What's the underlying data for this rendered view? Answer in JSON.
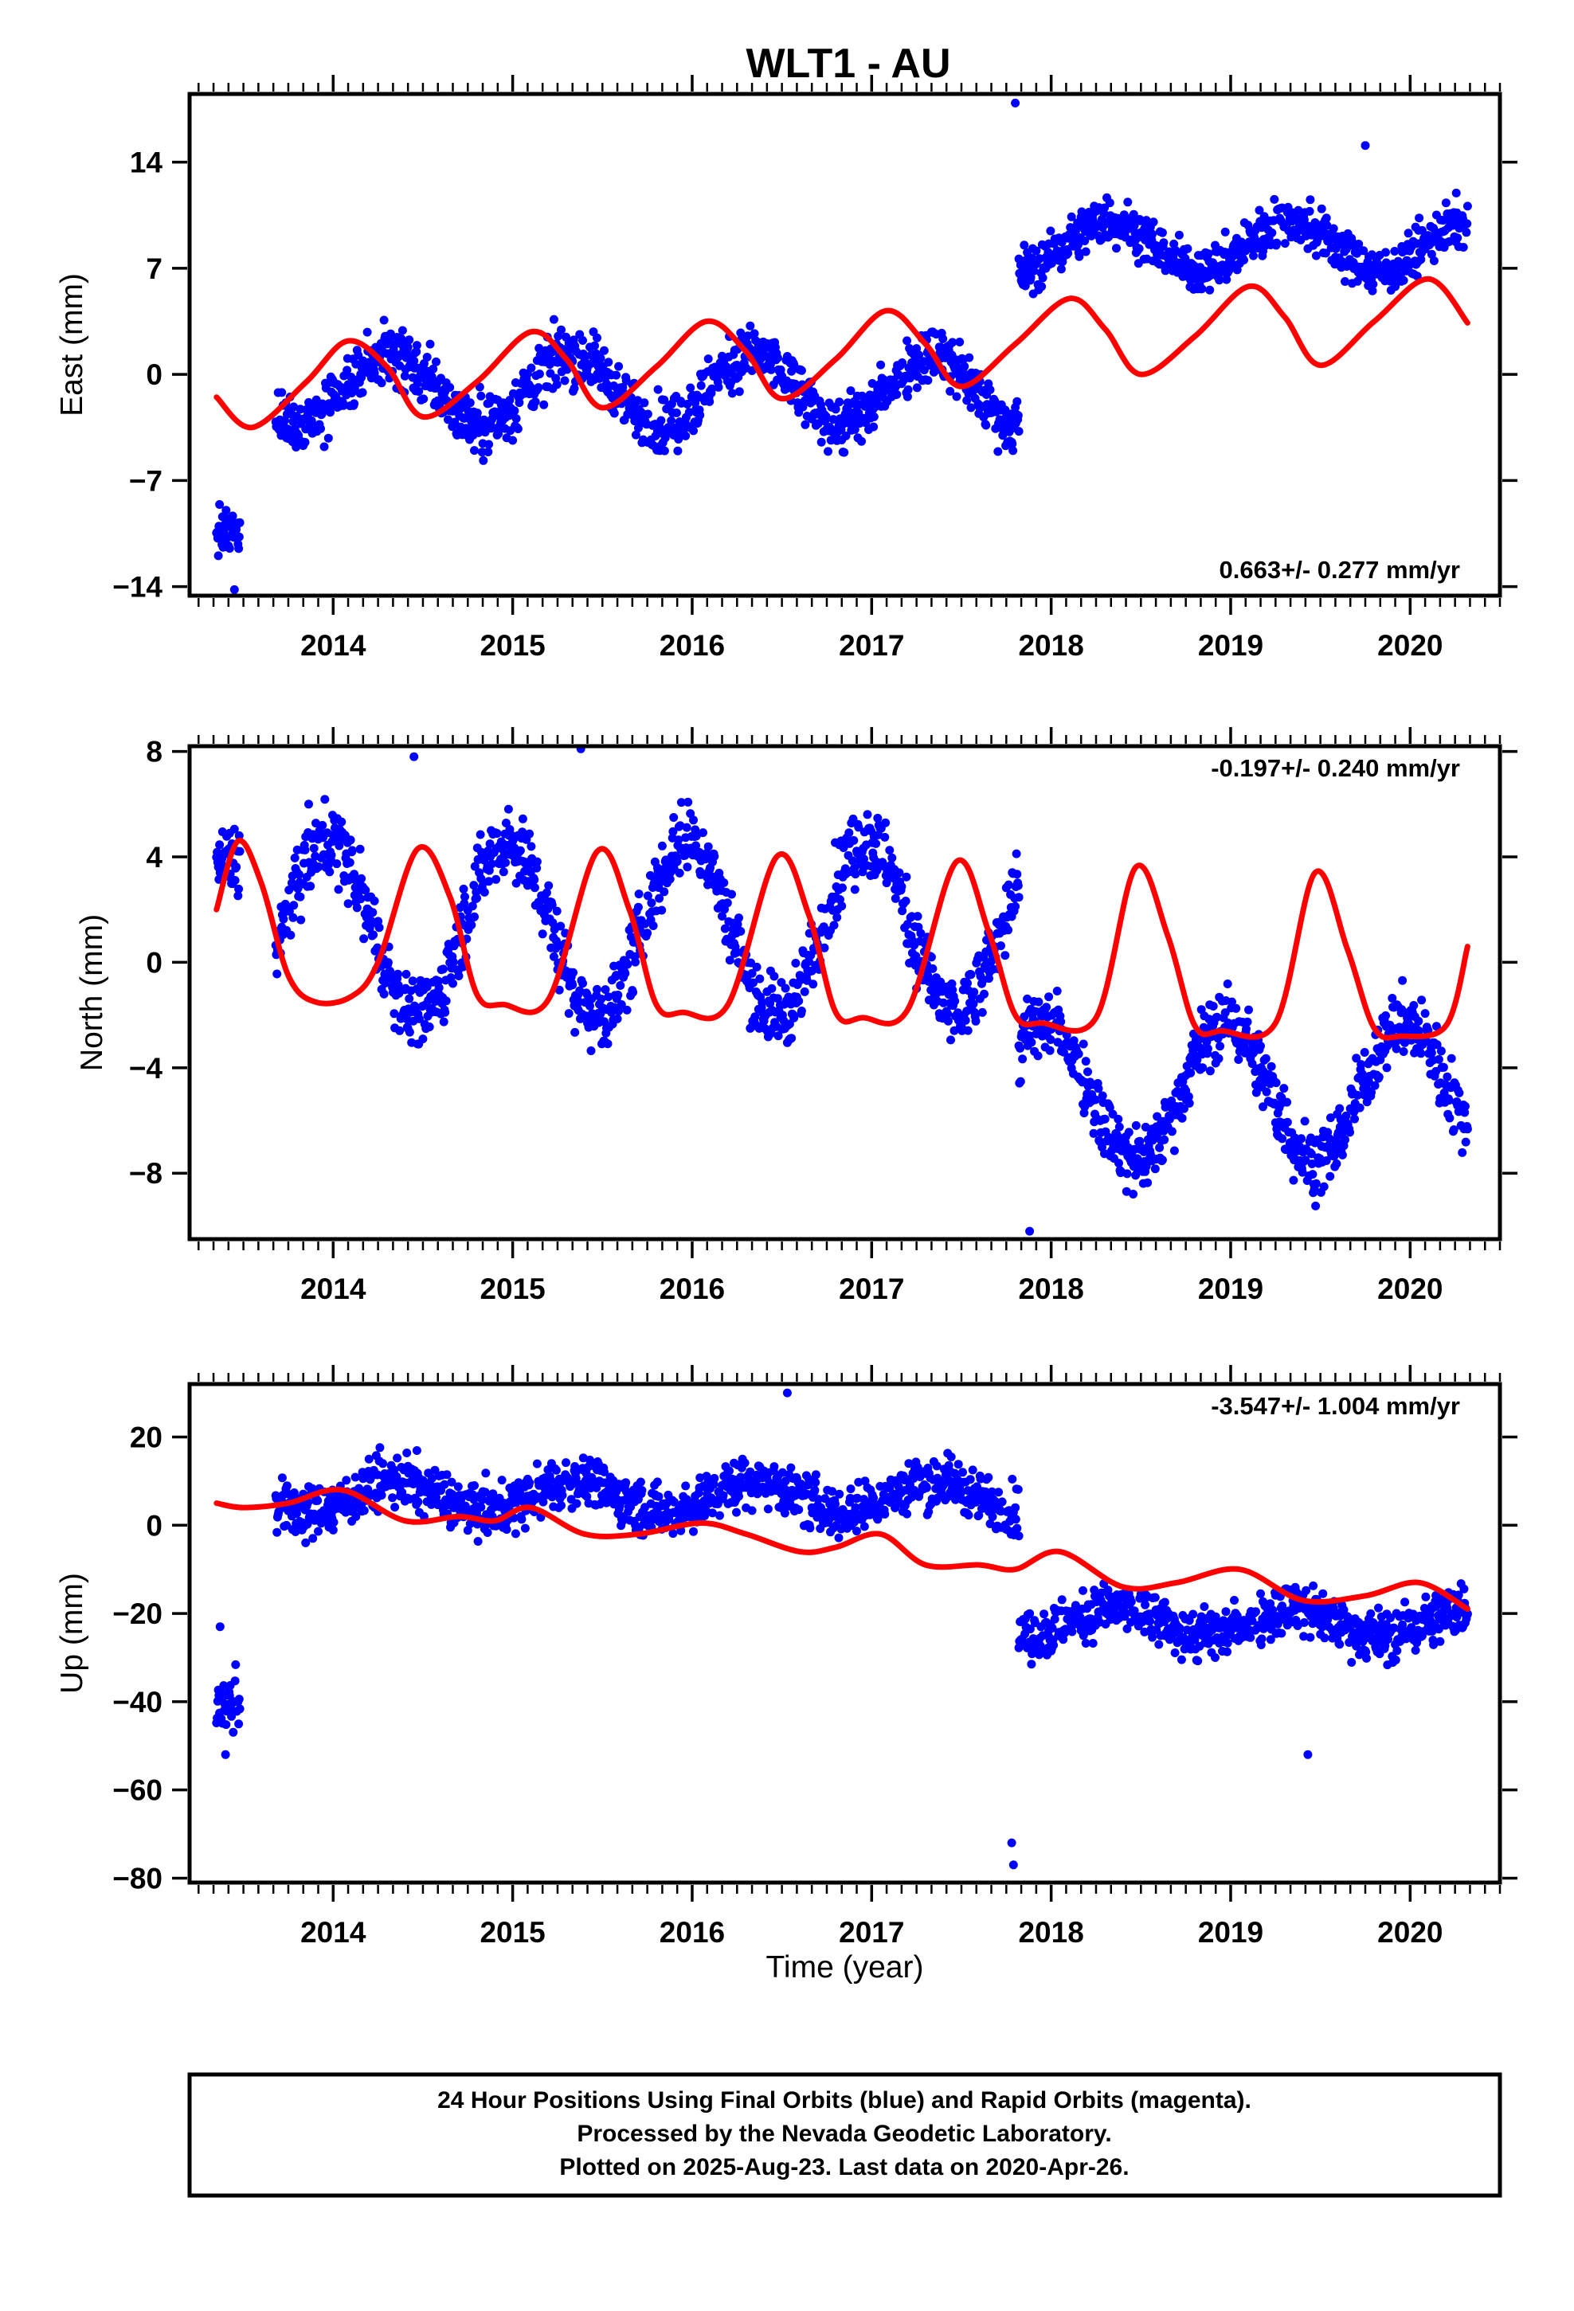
{
  "figure": {
    "title": "WLT1 - AU",
    "colors": {
      "data": "#0000ff",
      "model": "#ff0000",
      "frame": "#000000"
    },
    "caption": [
      "24 Hour Positions Using Final Orbits (blue) and Rapid Orbits (magenta).",
      "Processed by the Nevada Geodetic Laboratory.",
      "Plotted on 2025-Aug-23. Last data on 2020-Apr-26."
    ]
  },
  "chart_data": [
    {
      "type": "scatter",
      "component": "east",
      "ylabel": "East (mm)",
      "xlabel": "",
      "xlim": [
        2013.2,
        2020.5
      ],
      "ylim": [
        -14.6,
        18.5
      ],
      "xticks": [
        2014,
        2015,
        2016,
        2017,
        2018,
        2019,
        2020
      ],
      "xtick_labels": [
        "2014",
        "2015",
        "2016",
        "2017",
        "2018",
        "2019",
        "2020"
      ],
      "yticks": [
        14,
        7,
        0,
        -7,
        -14
      ],
      "ytick_labels": [
        "14",
        "7",
        "0",
        "-7",
        "-14"
      ],
      "rate_label": "0.663+/- 0.277 mm/yr",
      "rate_position": "bottom-right",
      "data_range": [
        2013.35,
        2020.32
      ],
      "segments": [
        {
          "start": 2013.35,
          "end": 2013.48,
          "mean": -10.5,
          "amplitude": 0,
          "phase": 0,
          "spread": 1.2
        },
        {
          "start": 2013.68,
          "end": 2017.82,
          "mean": -1.0,
          "amplitude": 2.3,
          "phase": 0.08,
          "spread": 1.6
        },
        {
          "start": 2017.82,
          "end": 2020.32,
          "mean": 8.5,
          "amplitude": 1.6,
          "phase": 0.08,
          "spread": 1.3
        }
      ],
      "outliers": [
        {
          "x": 2017.8,
          "y": 17.9
        },
        {
          "x": 2019.75,
          "y": 15.1
        },
        {
          "x": 2013.45,
          "y": -14.2
        }
      ],
      "model": {
        "x": [
          2013.35,
          2013.55,
          2013.85,
          2014.08,
          2014.3,
          2014.5,
          2014.8,
          2015.1,
          2015.3,
          2015.5,
          2015.8,
          2016.08,
          2016.3,
          2016.5,
          2016.8,
          2017.08,
          2017.3,
          2017.5,
          2017.8,
          2018.1,
          2018.3,
          2018.5,
          2018.8,
          2019.1,
          2019.3,
          2019.5,
          2019.8,
          2020.1,
          2020.32
        ],
        "y": [
          -1.5,
          -3.5,
          -0.5,
          2.2,
          0.5,
          -2.8,
          -0.5,
          2.8,
          1.0,
          -2.2,
          0.5,
          3.5,
          1.5,
          -1.6,
          1.0,
          4.2,
          2.0,
          -0.8,
          2.0,
          5.0,
          3.0,
          0.0,
          2.5,
          5.8,
          3.8,
          0.6,
          3.5,
          6.3,
          3.4
        ]
      }
    },
    {
      "type": "scatter",
      "component": "north",
      "ylabel": "North (mm)",
      "xlabel": "",
      "xlim": [
        2013.2,
        2020.5
      ],
      "ylim": [
        -10.5,
        8.2
      ],
      "xticks": [
        2014,
        2015,
        2016,
        2017,
        2018,
        2019,
        2020
      ],
      "xtick_labels": [
        "2014",
        "2015",
        "2016",
        "2017",
        "2018",
        "2019",
        "2020"
      ],
      "yticks": [
        8,
        4,
        0,
        -4,
        -8
      ],
      "ytick_labels": [
        "8",
        "4",
        "0",
        "-4",
        "-8"
      ],
      "rate_label": "-0.197+/- 0.240 mm/yr",
      "rate_position": "top-right",
      "data_range": [
        2013.35,
        2020.32
      ],
      "segments": [
        {
          "start": 2013.35,
          "end": 2013.48,
          "mean": 3.8,
          "amplitude": 0,
          "phase": 0,
          "spread": 1.1
        },
        {
          "start": 2013.68,
          "end": 2017.82,
          "mean": 1.3,
          "amplitude": 3.3,
          "phase": 0.72,
          "spread": 1.2
        },
        {
          "start": 2017.82,
          "end": 2020.32,
          "mean": -4.9,
          "amplitude": 2.6,
          "phase": 0.72,
          "spread": 1.1
        }
      ],
      "outliers": [
        {
          "x": 2017.88,
          "y": -10.2
        },
        {
          "x": 2015.38,
          "y": 8.1
        },
        {
          "x": 2014.45,
          "y": 7.8
        }
      ],
      "model": {
        "x": [
          2013.35,
          2013.47,
          2013.6,
          2013.75,
          2013.9,
          2014.1,
          2014.25,
          2014.47,
          2014.65,
          2014.8,
          2014.95,
          2015.2,
          2015.47,
          2015.65,
          2015.8,
          2015.95,
          2016.2,
          2016.47,
          2016.65,
          2016.8,
          2016.95,
          2017.2,
          2017.47,
          2017.65,
          2017.8,
          2017.95,
          2018.25,
          2018.47,
          2018.65,
          2018.8,
          2018.95,
          2019.25,
          2019.47,
          2019.65,
          2019.8,
          2019.95,
          2020.2,
          2020.32
        ],
        "y": [
          2.0,
          4.6,
          3.0,
          -0.5,
          -1.5,
          -1.3,
          0.0,
          4.3,
          2.5,
          -1.2,
          -1.6,
          -1.4,
          4.2,
          2.0,
          -1.6,
          -1.9,
          -1.6,
          4.0,
          1.8,
          -1.9,
          -2.1,
          -1.8,
          3.8,
          1.2,
          -2.0,
          -2.3,
          -2.1,
          3.6,
          1.0,
          -2.4,
          -2.6,
          -2.3,
          3.4,
          0.5,
          -2.5,
          -2.8,
          -2.4,
          0.6
        ]
      }
    },
    {
      "type": "scatter",
      "component": "up",
      "ylabel": "Up (mm)",
      "xlabel": "Time (year)",
      "xlim": [
        2013.2,
        2020.5
      ],
      "ylim": [
        -81,
        32
      ],
      "xticks": [
        2014,
        2015,
        2016,
        2017,
        2018,
        2019,
        2020
      ],
      "xtick_labels": [
        "2014",
        "2015",
        "2016",
        "2017",
        "2018",
        "2019",
        "2020"
      ],
      "yticks": [
        20,
        0,
        -20,
        -40,
        -60,
        -80
      ],
      "ytick_labels": [
        "20",
        "0",
        "-20",
        "-40",
        "-60",
        "-80"
      ],
      "rate_label": "-3.547+/- 1.004 mm/yr",
      "rate_position": "top-right",
      "data_range": [
        2013.35,
        2020.32
      ],
      "segments": [
        {
          "start": 2013.35,
          "end": 2013.48,
          "mean": -40,
          "amplitude": 0,
          "phase": 0,
          "spread": 6
        },
        {
          "start": 2013.68,
          "end": 2017.82,
          "mean": 6.5,
          "amplitude": 3.5,
          "phase": 0.1,
          "spread": 5
        },
        {
          "start": 2017.82,
          "end": 2020.32,
          "mean": -22,
          "amplitude": 3.0,
          "phase": 0.1,
          "spread": 5
        }
      ],
      "outliers": [
        {
          "x": 2016.53,
          "y": 30
        },
        {
          "x": 2017.78,
          "y": -72
        },
        {
          "x": 2017.79,
          "y": -77
        },
        {
          "x": 2019.43,
          "y": -52
        },
        {
          "x": 2013.4,
          "y": -52
        },
        {
          "x": 2013.37,
          "y": -23
        }
      ],
      "model": {
        "x": [
          2013.35,
          2013.5,
          2013.75,
          2014.05,
          2014.4,
          2014.7,
          2014.9,
          2015.1,
          2015.4,
          2015.7,
          2016.05,
          2016.3,
          2016.6,
          2016.8,
          2017.05,
          2017.3,
          2017.6,
          2017.8,
          2018.05,
          2018.4,
          2018.7,
          2019.05,
          2019.4,
          2019.75,
          2020.05,
          2020.32
        ],
        "y": [
          5,
          4,
          5,
          8,
          1,
          2,
          1,
          4,
          -2,
          -2,
          0.5,
          -2,
          -6,
          -5,
          -2,
          -9,
          -9,
          -10,
          -6,
          -14,
          -13,
          -10,
          -17,
          -16,
          -13,
          -19
        ]
      }
    }
  ]
}
